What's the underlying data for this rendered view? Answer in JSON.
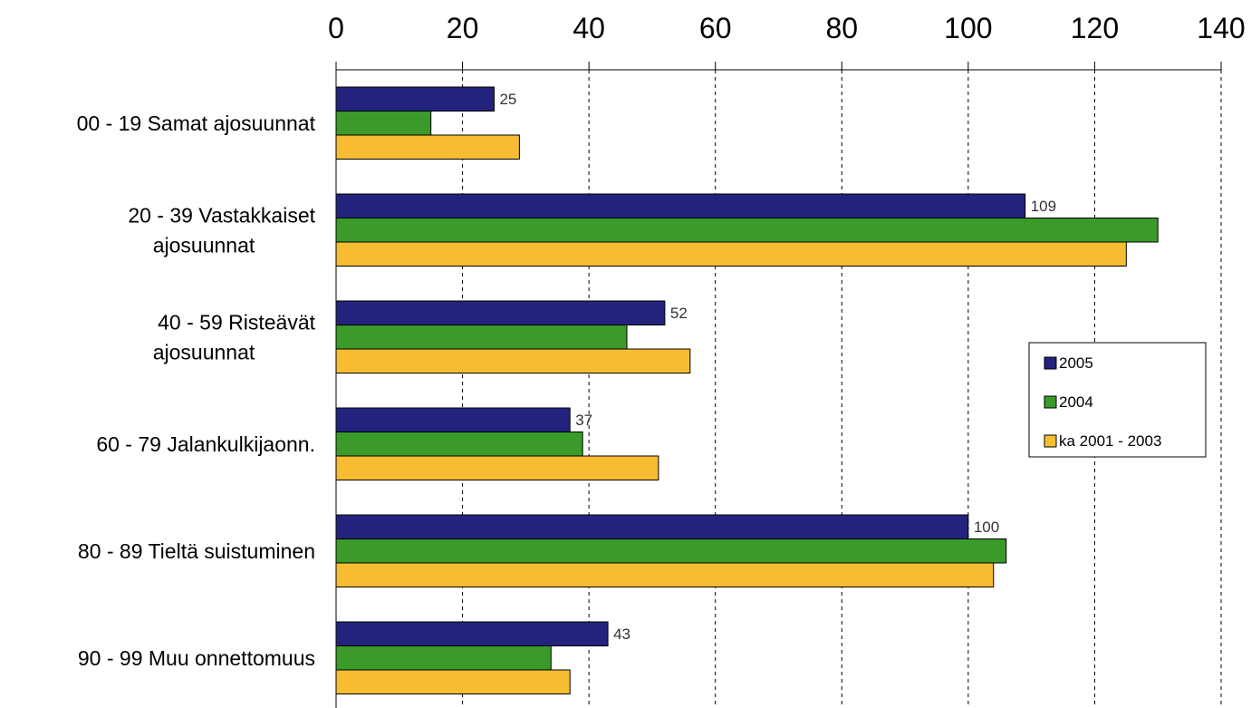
{
  "chart_data": {
    "type": "bar",
    "orientation": "horizontal",
    "title": "",
    "xlabel": "",
    "ylabel": "",
    "xlim": [
      0,
      140
    ],
    "x_ticks": [
      "0",
      "20",
      "40",
      "60",
      "80",
      "100",
      "120",
      "140"
    ],
    "x_axis_position": "top",
    "grid": "vertical dashed",
    "legend_position": "right",
    "categories": [
      [
        "00 - 19 Samat ajosuunnat"
      ],
      [
        "20 - 39 Vastakkaiset",
        "ajosuunnat"
      ],
      [
        "40 - 59 Risteävät",
        "ajosuunnat"
      ],
      [
        "60 - 79 Jalankulkijaonn."
      ],
      [
        "80 - 89 Tieltä suistuminen"
      ],
      [
        "90 - 99 Muu onnettomuus"
      ]
    ],
    "series": [
      {
        "name": "2005",
        "color": "#23237e",
        "values": [
          25,
          109,
          52,
          37,
          100,
          43
        ],
        "data_labels": [
          "25",
          "109",
          "52",
          "37",
          "100",
          "43"
        ]
      },
      {
        "name": "2004",
        "color": "#3a9a2a",
        "values": [
          15,
          130,
          46,
          39,
          106,
          34
        ]
      },
      {
        "name": "ka 2001 - 2003",
        "color": "#f6bd33",
        "values": [
          29,
          125,
          56,
          51,
          104,
          37
        ]
      }
    ]
  }
}
